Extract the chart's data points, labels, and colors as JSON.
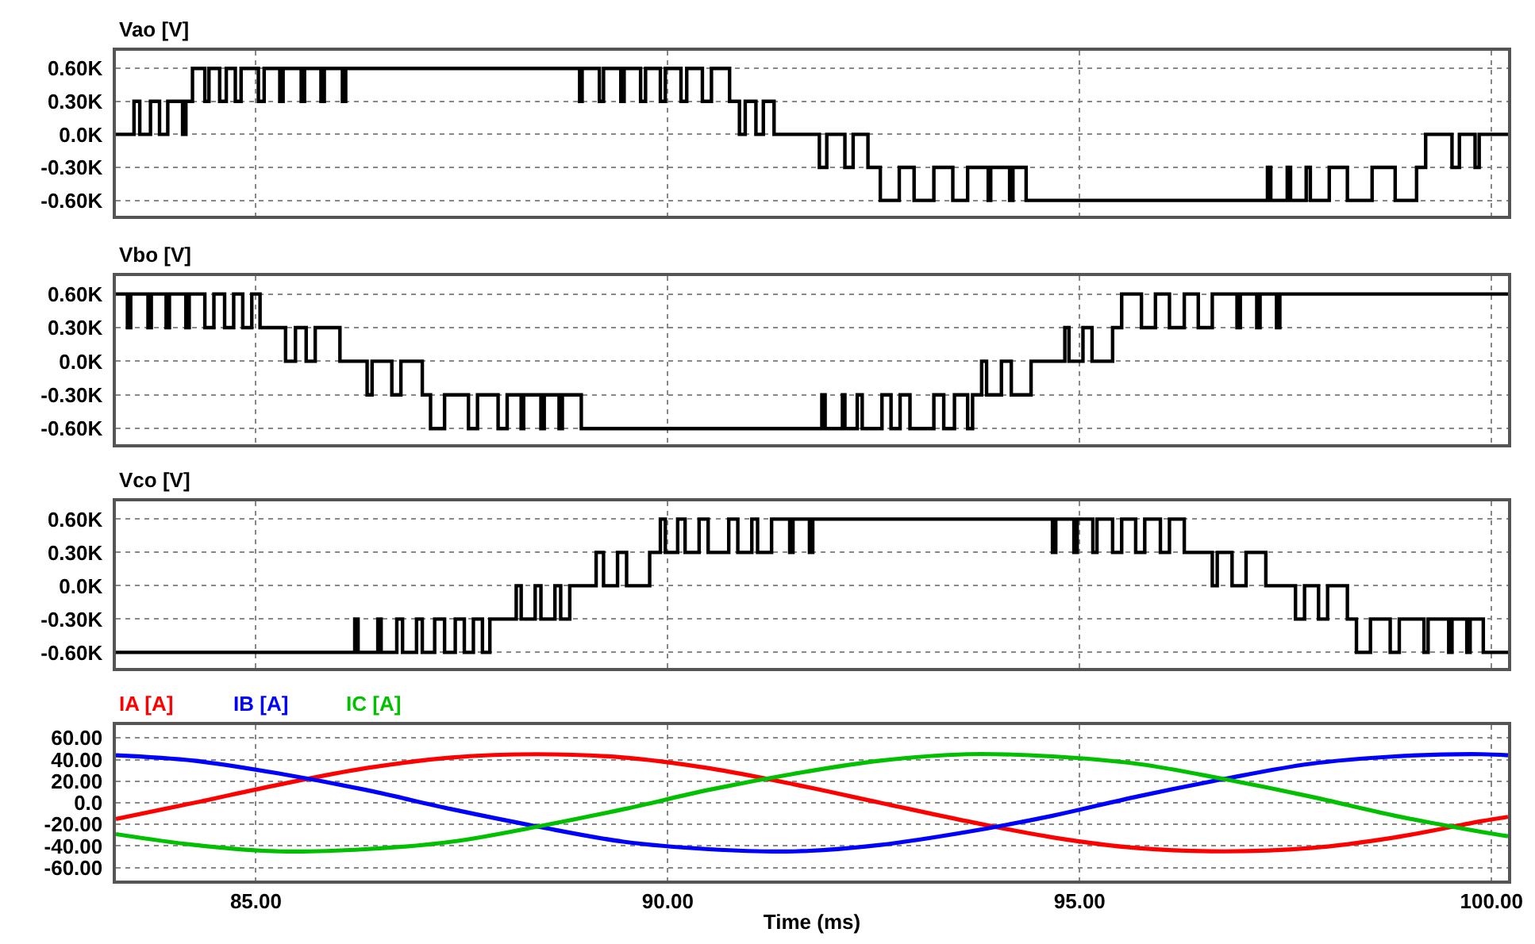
{
  "chart_data": [
    {
      "type": "step",
      "xlim": [
        83.3,
        100.2
      ],
      "xticks": [
        {
          "value": 85,
          "label": null
        },
        {
          "value": 90,
          "label": null
        },
        {
          "value": 95,
          "label": null
        },
        {
          "value": 100,
          "label": null
        }
      ],
      "ylim": [
        -740,
        760
      ],
      "yticks": [
        {
          "value": -600,
          "label": "-0.60K"
        },
        {
          "value": -300,
          "label": "-0.30K"
        },
        {
          "value": 0,
          "label": "0.0K"
        },
        {
          "value": 300,
          "label": "0.30K"
        },
        {
          "value": 600,
          "label": "0.60K"
        }
      ],
      "grid": true,
      "tick_labels": "y",
      "series": [
        {
          "name": "Vao [V]",
          "color": "#000000",
          "x": [
            83.3,
            83.52,
            83.59,
            83.72,
            83.83,
            83.93,
            84.11,
            84.15,
            84.23,
            84.38,
            84.43,
            84.56,
            84.64,
            84.75,
            84.82,
            85.03,
            85.1,
            85.29,
            85.33,
            85.55,
            85.59,
            85.79,
            85.83,
            86.05,
            86.09,
            88.93,
            88.96,
            89.17,
            89.22,
            89.43,
            89.47,
            89.67,
            89.73,
            89.91,
            89.97,
            90.16,
            90.23,
            90.42,
            90.53,
            90.75,
            90.87,
            90.94,
            91.07,
            91.16,
            91.29,
            91.84,
            91.93,
            92.15,
            92.25,
            92.43,
            92.58,
            92.81,
            92.99,
            93.23,
            93.46,
            93.64,
            93.89,
            93.92,
            94.15,
            94.19,
            94.35,
            97.28,
            97.32,
            97.52,
            97.56,
            97.75,
            97.8,
            98.03,
            98.25,
            98.55,
            98.83,
            99.09,
            99.2,
            99.52,
            99.61,
            99.8,
            99.85,
            100.2
          ],
          "values": [
            0,
            300,
            0,
            300,
            0,
            300,
            0,
            300,
            600,
            300,
            600,
            300,
            600,
            300,
            600,
            300,
            600,
            300,
            600,
            300,
            600,
            300,
            600,
            300,
            600,
            300,
            600,
            300,
            600,
            300,
            600,
            300,
            600,
            300,
            600,
            300,
            600,
            300,
            600,
            300,
            0,
            300,
            0,
            300,
            0,
            -300,
            0,
            -300,
            0,
            -300,
            -600,
            -300,
            -600,
            -300,
            -600,
            -300,
            -600,
            -300,
            -600,
            -300,
            -600,
            -300,
            -600,
            -300,
            -600,
            -300,
            -600,
            -300,
            -600,
            -300,
            -600,
            -300,
            0,
            -300,
            0,
            -300,
            0,
            0
          ]
        }
      ]
    },
    {
      "type": "step",
      "xlim": [
        83.3,
        100.2
      ],
      "xticks": [
        {
          "value": 85,
          "label": null
        },
        {
          "value": 90,
          "label": null
        },
        {
          "value": 95,
          "label": null
        },
        {
          "value": 100,
          "label": null
        }
      ],
      "ylim": [
        -740,
        760
      ],
      "yticks": [
        {
          "value": -600,
          "label": "-0.60K"
        },
        {
          "value": -300,
          "label": "-0.30K"
        },
        {
          "value": 0,
          "label": "0.0K"
        },
        {
          "value": 300,
          "label": "0.30K"
        },
        {
          "value": 600,
          "label": "0.60K"
        }
      ],
      "grid": true,
      "tick_labels": "y",
      "series": [
        {
          "name": "Vbo [V]",
          "color": "#000000",
          "x": [
            83.3,
            83.44,
            83.48,
            83.69,
            83.73,
            83.91,
            83.95,
            84.15,
            84.19,
            84.38,
            84.49,
            84.62,
            84.73,
            84.84,
            84.95,
            85.05,
            85.36,
            85.48,
            85.61,
            85.72,
            86.02,
            86.35,
            86.41,
            86.65,
            86.76,
            87.02,
            87.12,
            87.29,
            87.58,
            87.69,
            87.94,
            88.05,
            88.22,
            88.25,
            88.46,
            88.5,
            88.68,
            88.72,
            88.95,
            91.87,
            91.91,
            92.12,
            92.15,
            92.3,
            92.36,
            92.6,
            92.71,
            92.82,
            92.94,
            93.23,
            93.35,
            93.48,
            93.64,
            93.7,
            93.81,
            93.87,
            94.05,
            94.17,
            94.41,
            94.82,
            94.87,
            95.04,
            95.15,
            95.4,
            95.51,
            95.75,
            95.92,
            96.09,
            96.27,
            96.44,
            96.61,
            96.91,
            96.95,
            97.15,
            97.19,
            97.39,
            97.43,
            100.2
          ],
          "values": [
            600,
            300,
            600,
            300,
            600,
            300,
            600,
            300,
            600,
            300,
            600,
            300,
            600,
            300,
            600,
            300,
            0,
            300,
            0,
            300,
            0,
            -300,
            0,
            -300,
            0,
            -300,
            -600,
            -300,
            -600,
            -300,
            -600,
            -300,
            -600,
            -300,
            -600,
            -300,
            -600,
            -300,
            -600,
            -300,
            -600,
            -300,
            -600,
            -300,
            -600,
            -300,
            -600,
            -300,
            -600,
            -300,
            -600,
            -300,
            -600,
            -300,
            0,
            -300,
            0,
            -300,
            0,
            300,
            0,
            300,
            0,
            300,
            600,
            300,
            600,
            300,
            600,
            300,
            600,
            300,
            600,
            300,
            600,
            300,
            600,
            600
          ]
        }
      ]
    },
    {
      "type": "step",
      "xlim": [
        83.3,
        100.2
      ],
      "xticks": [
        {
          "value": 85,
          "label": null
        },
        {
          "value": 90,
          "label": null
        },
        {
          "value": 95,
          "label": null
        },
        {
          "value": 100,
          "label": null
        }
      ],
      "ylim": [
        -740,
        760
      ],
      "yticks": [
        {
          "value": -600,
          "label": "-0.60K"
        },
        {
          "value": -300,
          "label": "-0.30K"
        },
        {
          "value": 0,
          "label": "0.0K"
        },
        {
          "value": 300,
          "label": "0.30K"
        },
        {
          "value": 600,
          "label": "0.60K"
        }
      ],
      "grid": true,
      "tick_labels": "y",
      "series": [
        {
          "name": "Vco [V]",
          "color": "#000000",
          "x": [
            83.3,
            86.2,
            86.24,
            86.48,
            86.52,
            86.71,
            86.78,
            86.95,
            87.02,
            87.17,
            87.29,
            87.42,
            87.53,
            87.64,
            87.75,
            87.84,
            88.16,
            88.22,
            88.39,
            88.46,
            88.63,
            88.7,
            88.81,
            89.13,
            89.22,
            89.39,
            89.5,
            89.78,
            89.91,
            89.97,
            90.12,
            90.21,
            90.38,
            90.49,
            90.74,
            90.85,
            91.02,
            91.09,
            91.26,
            91.48,
            91.52,
            91.72,
            91.76,
            94.67,
            94.71,
            94.93,
            94.97,
            95.16,
            95.21,
            95.4,
            95.51,
            95.68,
            95.79,
            95.98,
            96.09,
            96.27,
            96.61,
            96.67,
            96.85,
            97.02,
            97.26,
            97.62,
            97.73,
            97.9,
            98.01,
            98.25,
            98.36,
            98.53,
            98.77,
            98.88,
            99.18,
            99.23,
            99.48,
            99.52,
            99.7,
            99.74,
            99.9,
            100.2
          ],
          "values": [
            -600,
            -300,
            -600,
            -300,
            -600,
            -300,
            -600,
            -300,
            -600,
            -300,
            -600,
            -300,
            -600,
            -300,
            -600,
            -300,
            0,
            -300,
            0,
            -300,
            0,
            -300,
            0,
            300,
            0,
            300,
            0,
            300,
            600,
            300,
            600,
            300,
            600,
            300,
            600,
            300,
            600,
            300,
            600,
            300,
            600,
            300,
            600,
            300,
            600,
            300,
            600,
            300,
            600,
            300,
            600,
            300,
            600,
            300,
            600,
            300,
            0,
            300,
            0,
            300,
            0,
            -300,
            0,
            -300,
            0,
            -300,
            -600,
            -300,
            -600,
            -300,
            -600,
            -300,
            -600,
            -300,
            -600,
            -300,
            -600,
            -600
          ]
        }
      ]
    },
    {
      "type": "line",
      "xlim": [
        83.3,
        100.2
      ],
      "xticks": [
        {
          "value": 85,
          "label": "85.00"
        },
        {
          "value": 90,
          "label": "90.00"
        },
        {
          "value": 95,
          "label": "95.00"
        },
        {
          "value": 100,
          "label": "100.00"
        }
      ],
      "ylim": [
        -72,
        72
      ],
      "yticks": [
        {
          "value": -60,
          "label": "-60.00"
        },
        {
          "value": -40,
          "label": "-40.00"
        },
        {
          "value": -20,
          "label": "-20.00"
        },
        {
          "value": 0,
          "label": "0.0"
        },
        {
          "value": 20,
          "label": "20.00"
        },
        {
          "value": 40,
          "label": "40.00"
        },
        {
          "value": 60,
          "label": "60.00"
        }
      ],
      "grid": true,
      "xlabel": "Time (ms)",
      "series": [
        {
          "name": "IA [A]",
          "color": "#ff0000",
          "x": [
            83.3,
            84.25,
            85.29,
            86.33,
            87.38,
            88.42,
            89.46,
            90.5,
            91.54,
            92.58,
            93.63,
            94.67,
            95.71,
            96.75,
            97.79,
            98.83,
            99.88,
            100.2
          ],
          "values": [
            -15,
            0,
            17,
            32,
            42,
            45,
            42,
            32,
            17,
            0,
            -17,
            -32,
            -42,
            -45,
            -42,
            -32,
            -17,
            -13
          ]
        },
        {
          "name": "IB [A]",
          "color": "#0000ff",
          "x": [
            83.3,
            84.25,
            85.29,
            86.33,
            87.38,
            88.42,
            89.46,
            90.5,
            91.54,
            92.58,
            93.63,
            94.67,
            95.71,
            96.75,
            97.79,
            98.83,
            99.88,
            100.2
          ],
          "values": [
            44,
            39,
            27,
            12,
            -6,
            -22,
            -36,
            -43,
            -45,
            -39,
            -27,
            -12,
            6,
            22,
            36,
            43,
            45,
            44
          ]
        },
        {
          "name": "IC [A]",
          "color": "#00c000",
          "x": [
            83.3,
            84.25,
            85.29,
            86.33,
            87.38,
            88.42,
            89.46,
            90.5,
            91.54,
            92.58,
            93.63,
            94.67,
            95.71,
            96.75,
            97.79,
            98.83,
            99.88,
            100.2
          ],
          "values": [
            -29,
            -39,
            -45,
            -43,
            -36,
            -22,
            -6,
            12,
            27,
            39,
            45,
            43,
            36,
            22,
            6,
            -12,
            -27,
            -31
          ]
        }
      ]
    }
  ]
}
